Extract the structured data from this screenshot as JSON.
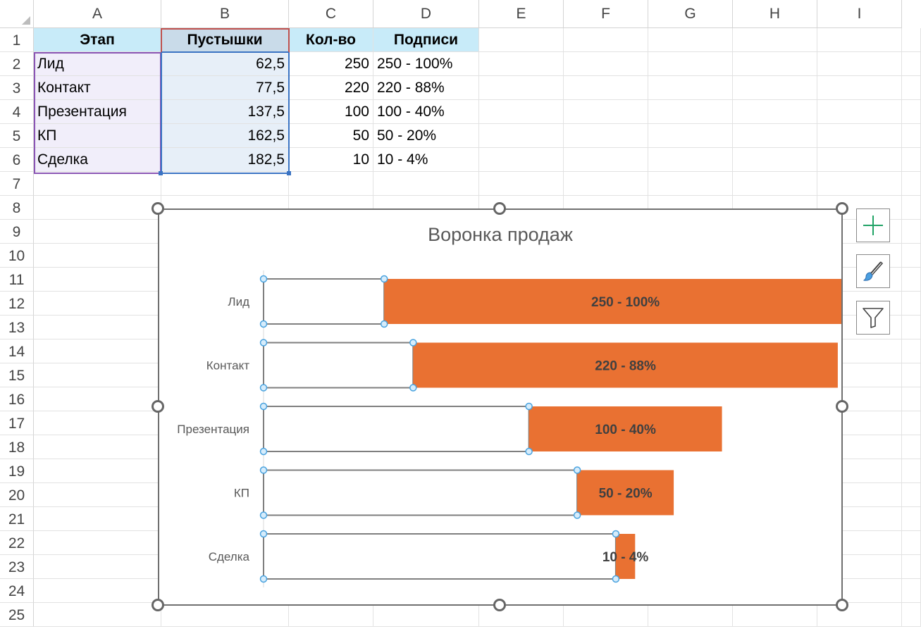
{
  "sheet": {
    "columns": [
      "A",
      "B",
      "C",
      "D",
      "E",
      "F",
      "G",
      "H",
      "I"
    ],
    "rows": [
      "1",
      "2",
      "3",
      "4",
      "5",
      "6",
      "7",
      "8",
      "9",
      "10",
      "11",
      "12",
      "13",
      "14",
      "15",
      "16",
      "17",
      "18",
      "19",
      "20",
      "21",
      "22",
      "23",
      "24",
      "25"
    ],
    "headers": {
      "a": "Этап",
      "b": "Пустышки",
      "c": "Кол-во",
      "d": "Подписи"
    },
    "data": [
      {
        "a": "Лид",
        "b": "62,5",
        "c": "250",
        "d": "250 - 100%"
      },
      {
        "a": "Контакт",
        "b": "77,5",
        "c": "220",
        "d": "220 - 88%"
      },
      {
        "a": "Презентация",
        "b": "137,5",
        "c": "100",
        "d": "100 - 40%"
      },
      {
        "a": "КП",
        "b": "162,5",
        "c": "50",
        "d": "50 - 20%"
      },
      {
        "a": "Сделка",
        "b": "182,5",
        "c": "10",
        "d": "10 - 4%"
      }
    ]
  },
  "chart_data": {
    "type": "bar",
    "title": "Воронка продаж",
    "orientation": "horizontal-stacked",
    "categories": [
      "Лид",
      "Контакт",
      "Презентация",
      "КП",
      "Сделка"
    ],
    "series": [
      {
        "name": "Пустышки",
        "values": [
          62.5,
          77.5,
          137.5,
          162.5,
          182.5
        ],
        "fill": "none",
        "selected": true
      },
      {
        "name": "Кол-во",
        "values": [
          250,
          220,
          100,
          50,
          10
        ],
        "fill": "#e97132"
      }
    ],
    "data_labels": [
      "250 - 100%",
      "220 - 88%",
      "100 - 40%",
      "50 - 20%",
      "10 - 4%"
    ],
    "xlim": [
      0,
      312.5
    ],
    "grid": false,
    "legend": "none"
  },
  "colors": {
    "bar": "#e97132",
    "label": "#404040",
    "axis_text": "#595959",
    "selection_handle": "#9ed0f0"
  },
  "side_buttons": [
    "plus-icon",
    "brush-icon",
    "filter-icon"
  ]
}
